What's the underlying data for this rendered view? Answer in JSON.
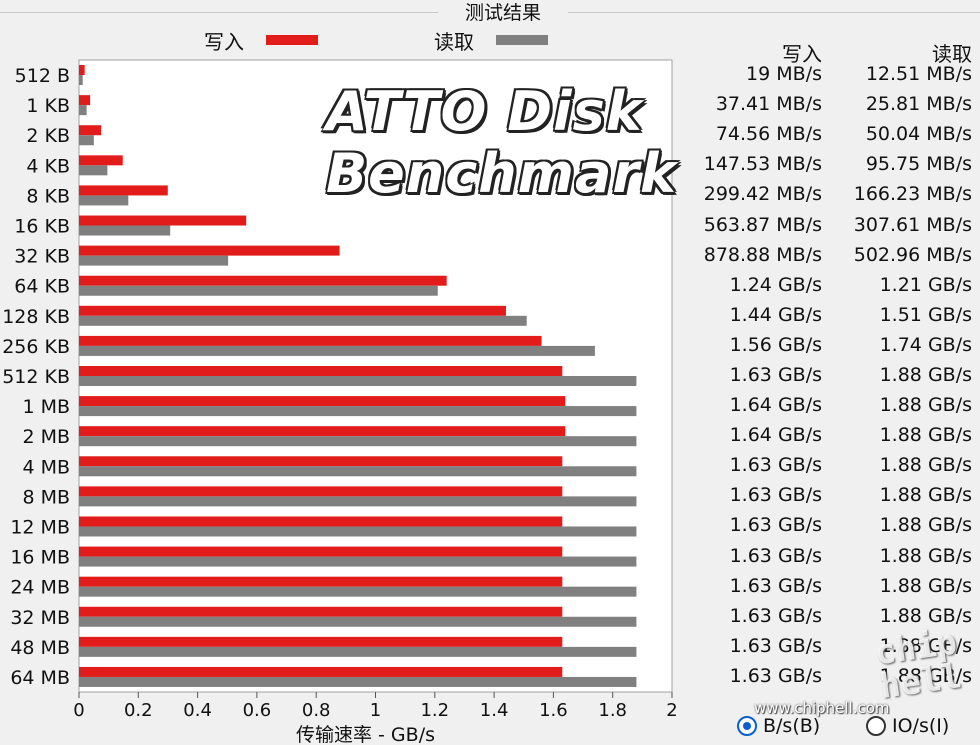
{
  "header": {
    "title": "测试结果"
  },
  "legend": [
    {
      "label": "写入",
      "color": "#e21b1b"
    },
    {
      "label": "读取",
      "color": "#808080"
    }
  ],
  "columns": {
    "write_header": "写入",
    "read_header": "读取"
  },
  "rows": [
    {
      "size": "512 B",
      "write": "19 MB/s",
      "read": "12.51 MB/s"
    },
    {
      "size": "1 KB",
      "write": "37.41 MB/s",
      "read": "25.81 MB/s"
    },
    {
      "size": "2 KB",
      "write": "74.56 MB/s",
      "read": "50.04 MB/s"
    },
    {
      "size": "4 KB",
      "write": "147.53 MB/s",
      "read": "95.75 MB/s"
    },
    {
      "size": "8 KB",
      "write": "299.42 MB/s",
      "read": "166.23 MB/s"
    },
    {
      "size": "16 KB",
      "write": "563.87 MB/s",
      "read": "307.61 MB/s"
    },
    {
      "size": "32 KB",
      "write": "878.88 MB/s",
      "read": "502.96 MB/s"
    },
    {
      "size": "64 KB",
      "write": "1.24 GB/s",
      "read": "1.21 GB/s"
    },
    {
      "size": "128 KB",
      "write": "1.44 GB/s",
      "read": "1.51 GB/s"
    },
    {
      "size": "256 KB",
      "write": "1.56 GB/s",
      "read": "1.74 GB/s"
    },
    {
      "size": "512 KB",
      "write": "1.63 GB/s",
      "read": "1.88 GB/s"
    },
    {
      "size": "1 MB",
      "write": "1.64 GB/s",
      "read": "1.88 GB/s"
    },
    {
      "size": "2 MB",
      "write": "1.64 GB/s",
      "read": "1.88 GB/s"
    },
    {
      "size": "4 MB",
      "write": "1.63 GB/s",
      "read": "1.88 GB/s"
    },
    {
      "size": "8 MB",
      "write": "1.63 GB/s",
      "read": "1.88 GB/s"
    },
    {
      "size": "12 MB",
      "write": "1.63 GB/s",
      "read": "1.88 GB/s"
    },
    {
      "size": "16 MB",
      "write": "1.63 GB/s",
      "read": "1.88 GB/s"
    },
    {
      "size": "24 MB",
      "write": "1.63 GB/s",
      "read": "1.88 GB/s"
    },
    {
      "size": "32 MB",
      "write": "1.63 GB/s",
      "read": "1.88 GB/s"
    },
    {
      "size": "48 MB",
      "write": "1.63 GB/s",
      "read": "1.88 GB/s"
    },
    {
      "size": "64 MB",
      "write": "1.63 GB/s",
      "read": "1.88 GB/s"
    }
  ],
  "chart_data": {
    "type": "bar",
    "orientation": "horizontal",
    "xlabel": "传输速率 - GB/s",
    "xlim": [
      0,
      2
    ],
    "xticks": [
      "0",
      "0.2",
      "0.4",
      "0.6",
      "0.8",
      "1",
      "1.2",
      "1.4",
      "1.6",
      "1.8",
      "2"
    ],
    "categories": [
      "512 B",
      "1 KB",
      "2 KB",
      "4 KB",
      "8 KB",
      "16 KB",
      "32 KB",
      "64 KB",
      "128 KB",
      "256 KB",
      "512 KB",
      "1 MB",
      "2 MB",
      "4 MB",
      "8 MB",
      "12 MB",
      "16 MB",
      "24 MB",
      "32 MB",
      "48 MB",
      "64 MB"
    ],
    "series": [
      {
        "name": "写入",
        "color": "#e21b1b",
        "values": [
          0.019,
          0.03741,
          0.07456,
          0.14753,
          0.29942,
          0.56387,
          0.87888,
          1.24,
          1.44,
          1.56,
          1.63,
          1.64,
          1.64,
          1.63,
          1.63,
          1.63,
          1.63,
          1.63,
          1.63,
          1.63,
          1.63
        ]
      },
      {
        "name": "读取",
        "color": "#808080",
        "values": [
          0.01251,
          0.02581,
          0.05004,
          0.09575,
          0.16623,
          0.30761,
          0.50296,
          1.21,
          1.51,
          1.74,
          1.88,
          1.88,
          1.88,
          1.88,
          1.88,
          1.88,
          1.88,
          1.88,
          1.88,
          1.88,
          1.88
        ]
      }
    ],
    "grid": false,
    "legend": "top"
  },
  "watermark": {
    "line1": "ATTO Disk",
    "line2": "Benchmark",
    "site": "www.chiphell.com",
    "logo": "chip hell"
  },
  "units": {
    "bytes": "B/s(B)",
    "io": "IO/s(I)",
    "selected": "bytes"
  }
}
